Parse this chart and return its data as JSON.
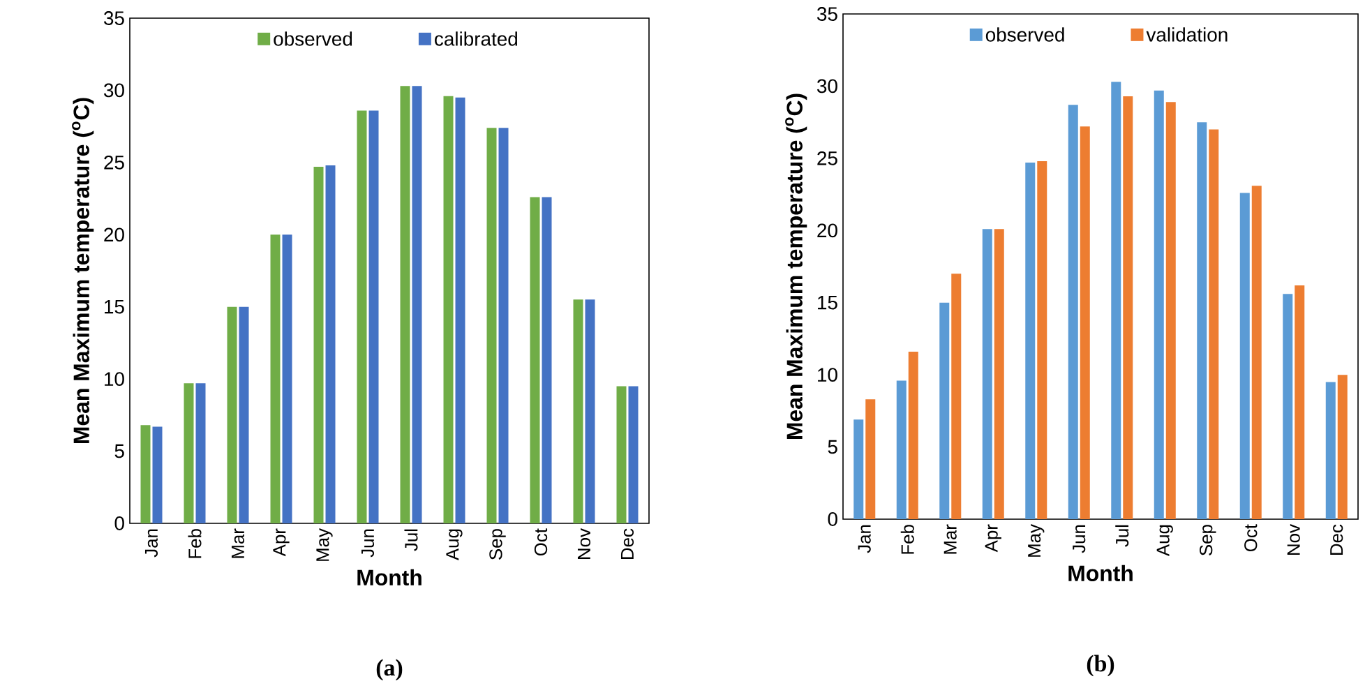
{
  "chart_data": [
    {
      "type": "bar",
      "xlabel": "Month",
      "ylabel": "Mean Maximum temperature ($^{o}$C)",
      "categories": [
        "Jan",
        "Feb",
        "Mar",
        "Apr",
        "May",
        "Jun",
        "Jul",
        "Aug",
        "Sep",
        "Oct",
        "Nov",
        "Dec"
      ],
      "series": [
        {
          "name": "observed",
          "color": "#70ad47",
          "values": [
            6.8,
            9.7,
            15.0,
            20.0,
            24.7,
            28.6,
            30.3,
            29.6,
            27.4,
            22.6,
            15.5,
            9.5
          ]
        },
        {
          "name": "calibrated",
          "color": "#4472c4",
          "values": [
            6.7,
            9.7,
            15.0,
            20.0,
            24.8,
            28.6,
            30.3,
            29.5,
            27.4,
            22.6,
            15.5,
            9.5
          ]
        }
      ],
      "ylim": [
        0,
        35
      ],
      "yticks": [
        0,
        5,
        10,
        15,
        20,
        25,
        30,
        35
      ],
      "legend": "top",
      "annotations": [
        "(a)"
      ]
    },
    {
      "type": "bar",
      "xlabel": "Month",
      "ylabel": "Mean Maximum temperature ($^{o}$C)",
      "categories": [
        "Jan",
        "Feb",
        "Mar",
        "Apr",
        "May",
        "Jun",
        "Jul",
        "Aug",
        "Sep",
        "Oct",
        "Nov",
        "Dec"
      ],
      "series": [
        {
          "name": "observed",
          "color": "#5b9bd5",
          "values": [
            6.9,
            9.6,
            15.0,
            20.1,
            24.7,
            28.7,
            30.3,
            29.7,
            27.5,
            22.6,
            15.6,
            9.5
          ]
        },
        {
          "name": "validation",
          "color": "#ed7d31",
          "values": [
            8.3,
            11.6,
            17.0,
            20.1,
            24.8,
            27.2,
            29.3,
            28.9,
            27.0,
            23.1,
            16.2,
            10.0
          ]
        }
      ],
      "ylim": [
        0,
        35
      ],
      "yticks": [
        0,
        5,
        10,
        15,
        20,
        25,
        30,
        35
      ],
      "legend": "top",
      "annotations": [
        "(b)"
      ]
    }
  ]
}
